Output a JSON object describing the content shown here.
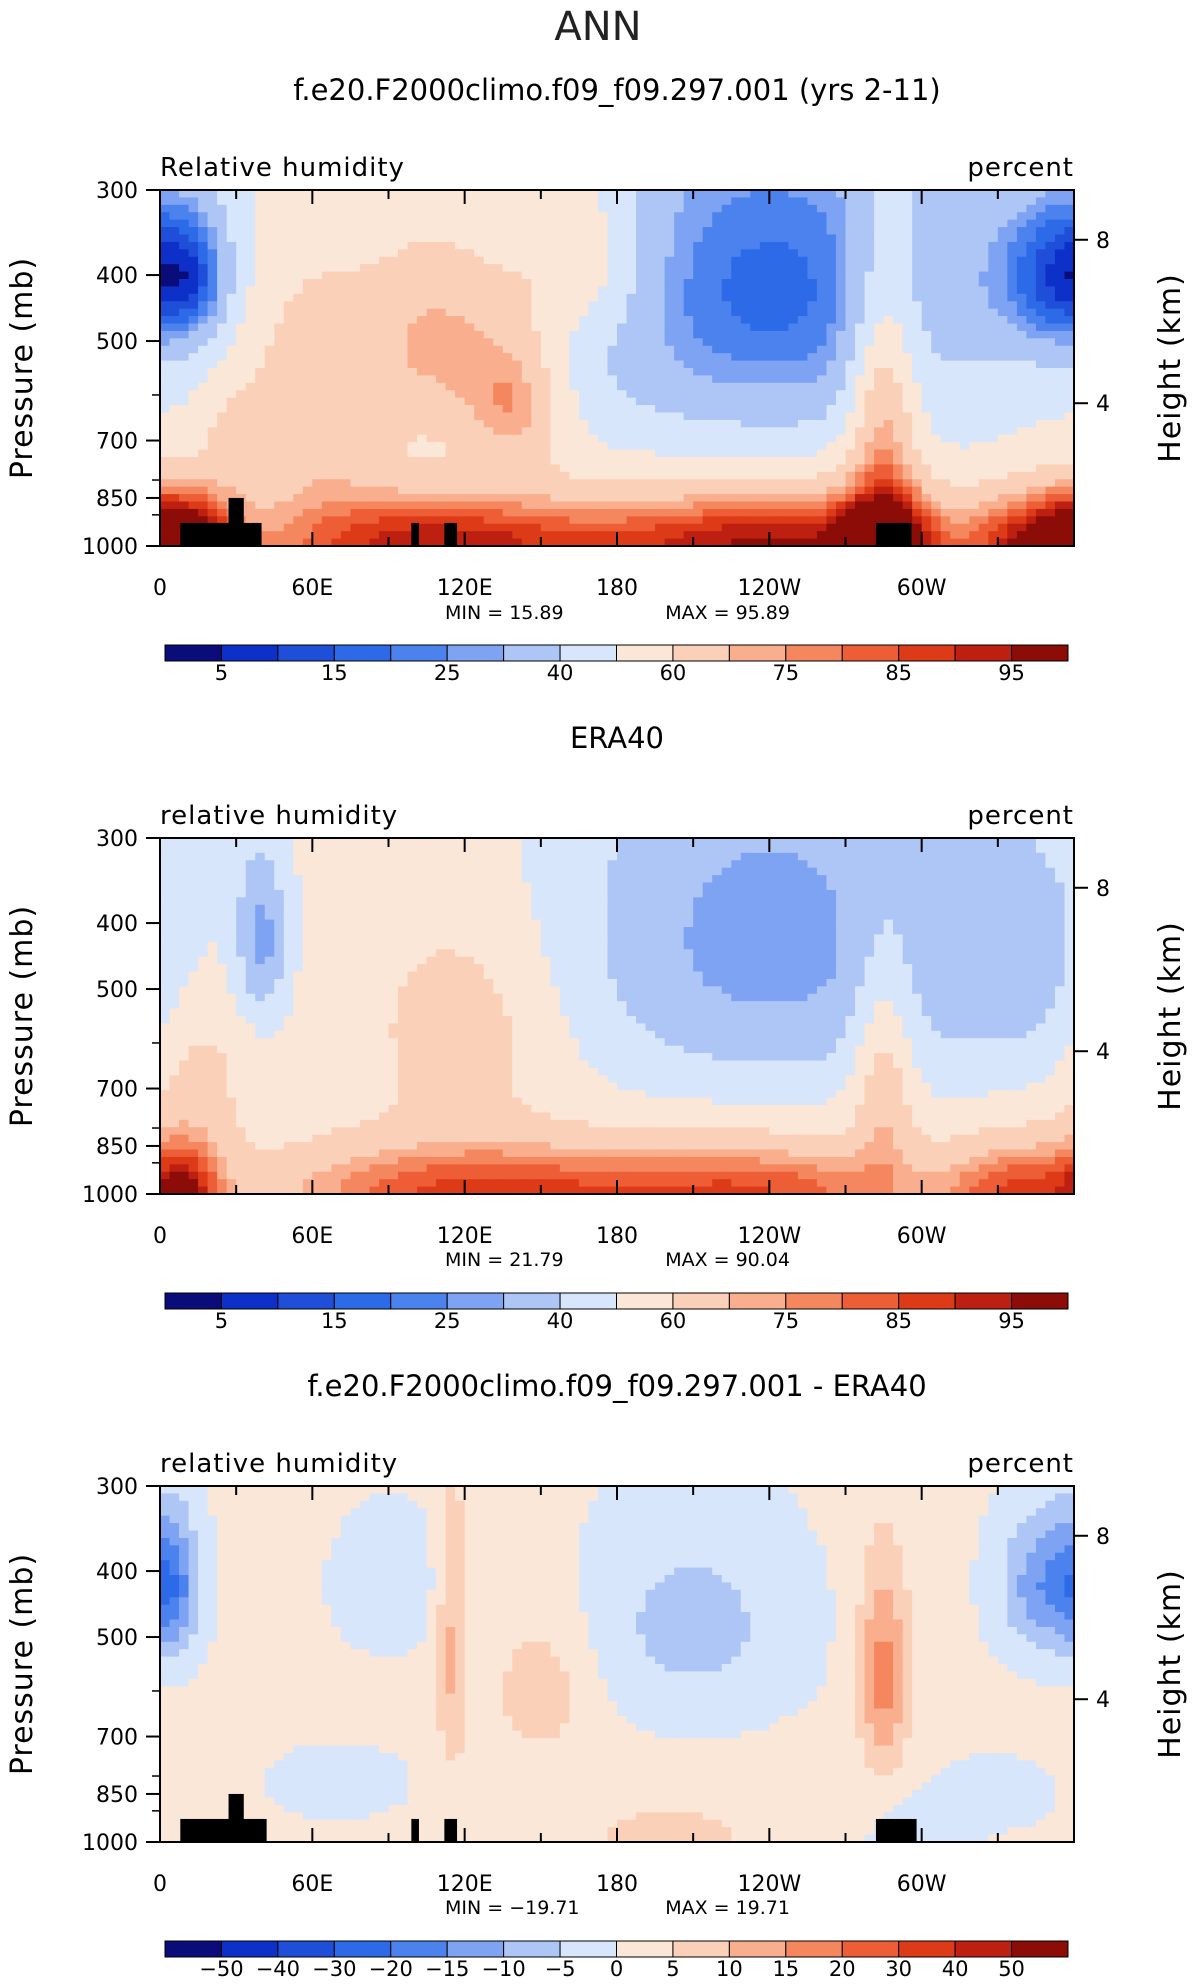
{
  "figure_title": "ANN",
  "chart_data": [
    {
      "type": "heatmap",
      "title": "f.e20.F2000climo.f09_f09.297.001 (yrs 2-11)",
      "left_label": "Relative humidity",
      "right_label": "percent",
      "ylabel": "Pressure (mb)",
      "y2label": "Height (km)",
      "x_ticks": [
        "0",
        "60E",
        "120E",
        "180",
        "120W",
        "60W"
      ],
      "y_ticks": [
        "300",
        "400",
        "500",
        "700",
        "850",
        "1000"
      ],
      "y2_ticks": [
        "8",
        "4"
      ],
      "min_label": "MIN = 15.89",
      "max_label": "MAX = 95.89",
      "colorbar_labels": [
        "5",
        "15",
        "25",
        "40",
        "60",
        "75",
        "85",
        "95"
      ],
      "colorbar_levels": [
        0,
        5,
        10,
        15,
        20,
        25,
        30,
        40,
        50,
        60,
        70,
        75,
        80,
        85,
        90,
        95,
        100
      ],
      "colorbar_colors": [
        "#0a0c7a",
        "#0d31c8",
        "#1f4ed8",
        "#2d6ae8",
        "#4b82ee",
        "#7ea3f2",
        "#adc6f5",
        "#d7e6fa",
        "#fbe7d8",
        "#fbd0b8",
        "#f9ae8e",
        "#f5875f",
        "#ee5e36",
        "#dd3a18",
        "#bd2010",
        "#8c0c08"
      ],
      "masked": true,
      "fields": {
        "base": 50,
        "tropo": [
          {
            "lon": 15,
            "p": 400,
            "w": 14,
            "h": 90,
            "a": -20
          },
          {
            "lon": 110,
            "p": 500,
            "w": 30,
            "h": 170,
            "a": 22
          },
          {
            "lon": 140,
            "p": 620,
            "w": 20,
            "h": 140,
            "a": 22
          },
          {
            "lon": 165,
            "p": 380,
            "w": 28,
            "h": 110,
            "a": 18
          },
          {
            "lon": 240,
            "p": 420,
            "w": 75,
            "h": 240,
            "a": -32
          },
          {
            "lon": 285,
            "p": 600,
            "w": 14,
            "h": 280,
            "a": 28
          },
          {
            "lon": 350,
            "p": 400,
            "w": 28,
            "h": 110,
            "a": -25
          },
          {
            "lon": 0,
            "p": 400,
            "w": 18,
            "h": 120,
            "a": -15
          },
          {
            "lon": 60,
            "p": 620,
            "w": 28,
            "h": 260,
            "a": 18
          },
          {
            "lon": 30,
            "p": 700,
            "w": 12,
            "h": 110,
            "a": 12
          }
        ],
        "bl": [
          {
            "lon": 105,
            "w": 70,
            "a": 43
          },
          {
            "lon": 240,
            "w": 75,
            "a": 45
          },
          {
            "lon": 350,
            "w": 30,
            "a": 42
          },
          {
            "lon": 10,
            "w": 20,
            "a": 33
          },
          {
            "lon": 285,
            "w": 18,
            "a": 40
          }
        ],
        "bl_depth": 180
      }
    },
    {
      "type": "heatmap",
      "title": "ERA40",
      "left_label": "relative humidity",
      "right_label": "percent",
      "ylabel": "Pressure (mb)",
      "y2label": "Height (km)",
      "x_ticks": [
        "0",
        "60E",
        "120E",
        "180",
        "120W",
        "60W"
      ],
      "y_ticks": [
        "300",
        "400",
        "500",
        "700",
        "850",
        "1000"
      ],
      "y2_ticks": [
        "8",
        "4"
      ],
      "min_label": "MIN = 21.79",
      "max_label": "MAX = 90.04",
      "colorbar_labels": [
        "5",
        "15",
        "25",
        "40",
        "60",
        "75",
        "85",
        "95"
      ],
      "colorbar_levels": [
        0,
        5,
        10,
        15,
        20,
        25,
        30,
        40,
        50,
        60,
        70,
        75,
        80,
        85,
        90,
        95,
        100
      ],
      "colorbar_colors": [
        "#0a0c7a",
        "#0d31c8",
        "#1f4ed8",
        "#2d6ae8",
        "#4b82ee",
        "#7ea3f2",
        "#adc6f5",
        "#d7e6fa",
        "#fbe7d8",
        "#fbd0b8",
        "#f9ae8e",
        "#f5875f",
        "#ee5e36",
        "#dd3a18",
        "#bd2010",
        "#8c0c08"
      ],
      "masked": false,
      "fields": {
        "base": 52,
        "tropo": [
          {
            "lon": 40,
            "p": 420,
            "w": 10,
            "h": 120,
            "a": -25
          },
          {
            "lon": 120,
            "p": 560,
            "w": 40,
            "h": 220,
            "a": 14
          },
          {
            "lon": 240,
            "p": 420,
            "w": 80,
            "h": 260,
            "a": -26
          },
          {
            "lon": 285,
            "p": 650,
            "w": 12,
            "h": 260,
            "a": 20
          },
          {
            "lon": 340,
            "p": 450,
            "w": 35,
            "h": 200,
            "a": -14
          },
          {
            "lon": 15,
            "p": 650,
            "w": 20,
            "h": 200,
            "a": 12
          }
        ],
        "bl": [
          {
            "lon": 120,
            "w": 80,
            "a": 34
          },
          {
            "lon": 240,
            "w": 70,
            "a": 30
          },
          {
            "lon": 340,
            "w": 30,
            "a": 30
          },
          {
            "lon": 10,
            "w": 15,
            "a": 30
          }
        ],
        "bl_depth": 180
      }
    },
    {
      "type": "heatmap",
      "title": "f.e20.F2000climo.f09_f09.297.001 - ERA40",
      "left_label": "relative humidity",
      "right_label": "percent",
      "ylabel": "Pressure (mb)",
      "y2label": "Height (km)",
      "x_ticks": [
        "0",
        "60E",
        "120E",
        "180",
        "120W",
        "60W"
      ],
      "y_ticks": [
        "300",
        "400",
        "500",
        "700",
        "850",
        "1000"
      ],
      "y2_ticks": [
        "8",
        "4"
      ],
      "min_label": "MIN = −19.71",
      "max_label": "MAX = 19.71",
      "colorbar_labels": [
        "−50",
        "−40",
        "−30",
        "−20",
        "−15",
        "−10",
        "−5",
        "0",
        "5",
        "10",
        "15",
        "20",
        "30",
        "40",
        "50"
      ],
      "colorbar_levels": [
        -55,
        -50,
        -40,
        -30,
        -20,
        -15,
        -10,
        -5,
        0,
        5,
        10,
        15,
        20,
        30,
        40,
        50,
        55
      ],
      "colorbar_colors": [
        "#0a0c7a",
        "#0d31c8",
        "#1f4ed8",
        "#2d6ae8",
        "#4b82ee",
        "#7ea3f2",
        "#adc6f5",
        "#d7e6fa",
        "#fbe7d8",
        "#fbd0b8",
        "#f9ae8e",
        "#f5875f",
        "#ee5e36",
        "#dd3a18",
        "#bd2010",
        "#8c0c08"
      ],
      "masked": true,
      "fields": {
        "base": 1,
        "tropo": [
          {
            "lon": 5,
            "p": 420,
            "w": 10,
            "h": 100,
            "a": -14
          },
          {
            "lon": 350,
            "p": 420,
            "w": 18,
            "h": 100,
            "a": -16
          },
          {
            "lon": 285,
            "p": 570,
            "w": 10,
            "h": 200,
            "a": 16
          },
          {
            "lon": 150,
            "p": 600,
            "w": 20,
            "h": 150,
            "a": 7
          },
          {
            "lon": 115,
            "p": 520,
            "w": 6,
            "h": 260,
            "a": 10
          },
          {
            "lon": 210,
            "p": 480,
            "w": 40,
            "h": 160,
            "a": -8
          },
          {
            "lon": 90,
            "p": 420,
            "w": 20,
            "h": 90,
            "a": -5
          },
          {
            "lon": 70,
            "p": 820,
            "w": 25,
            "h": 90,
            "a": -4
          },
          {
            "lon": 330,
            "p": 850,
            "w": 20,
            "h": 90,
            "a": -4
          }
        ],
        "bl": [
          {
            "lon": 200,
            "w": 40,
            "a": 6
          },
          {
            "lon": 300,
            "w": 20,
            "a": -4
          }
        ],
        "bl_depth": 150
      }
    }
  ]
}
